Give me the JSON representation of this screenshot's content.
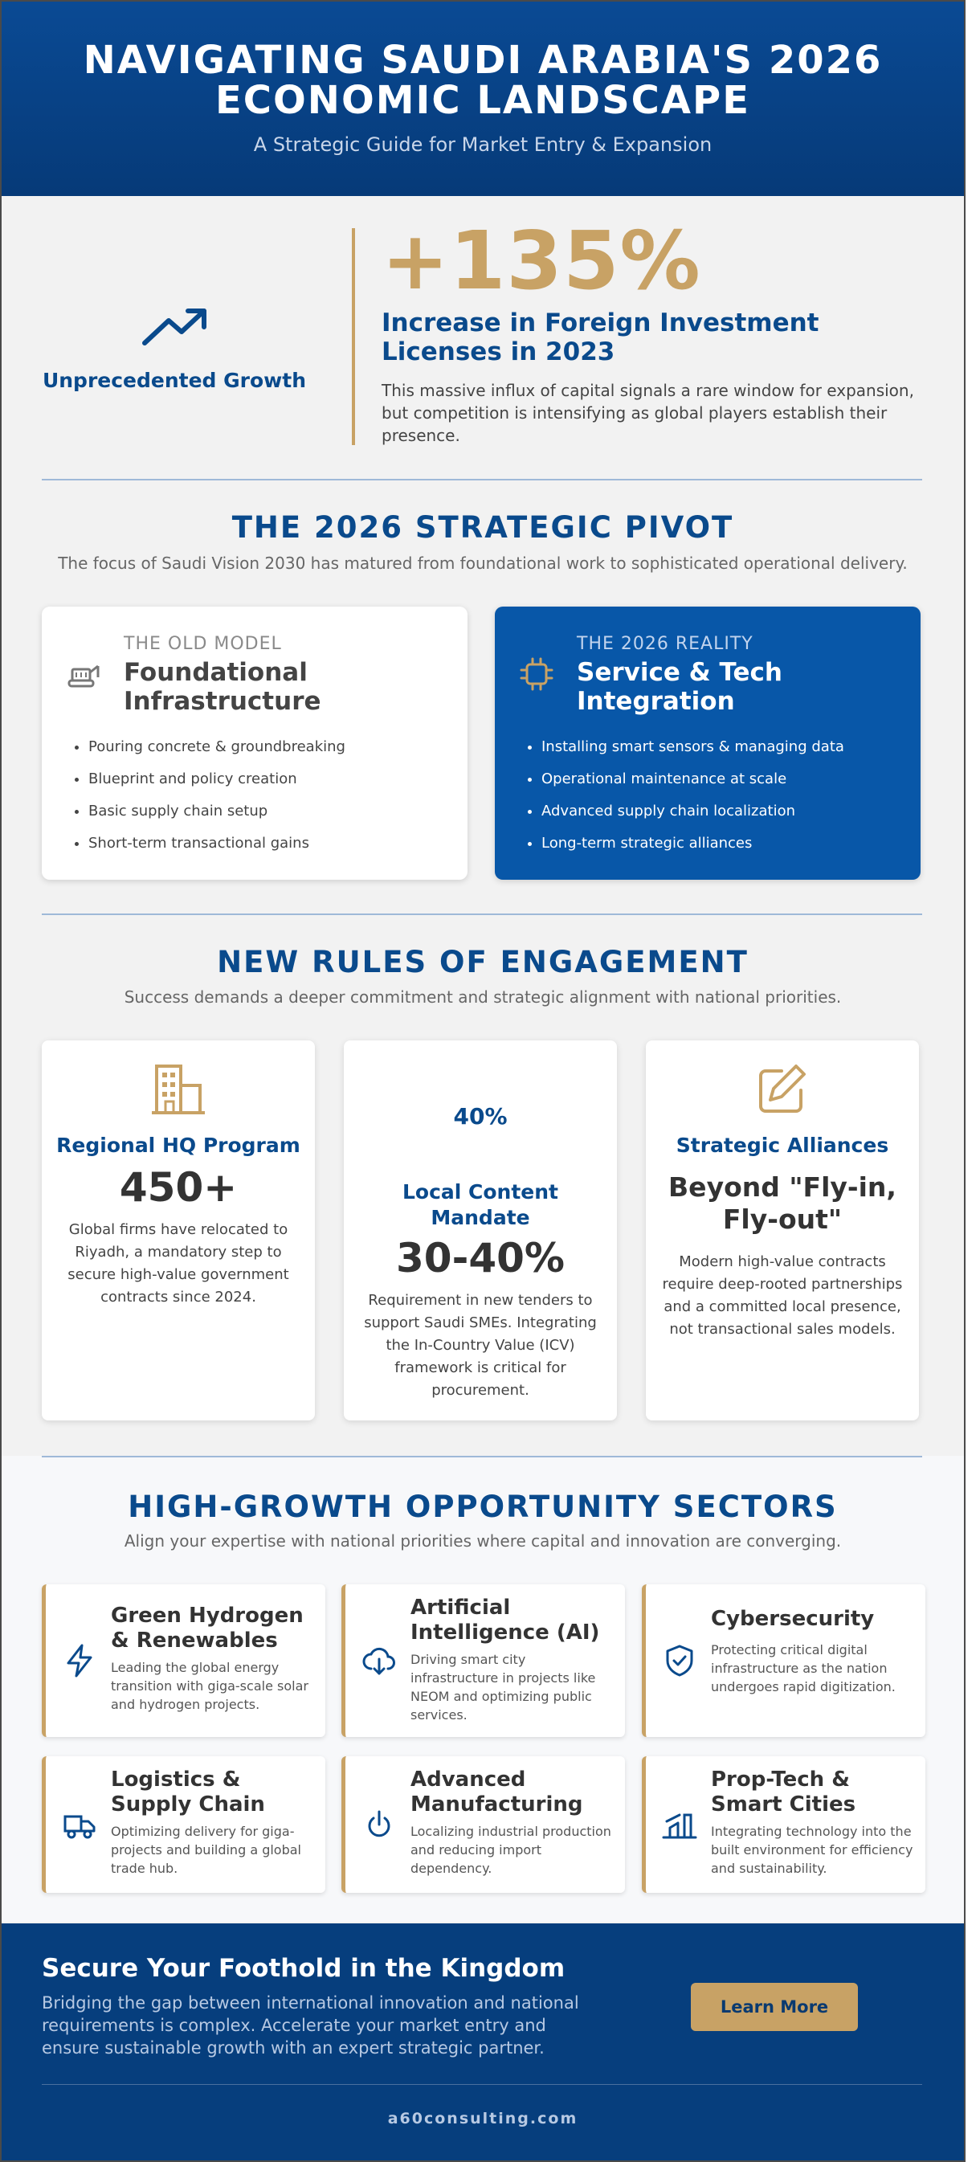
{
  "header": {
    "title_line1": "NAVIGATING SAUDI ARABIA'S 2026",
    "title_line2": "ECONOMIC LANDSCAPE",
    "subtitle": "A Strategic Guide for Market Entry & Expansion"
  },
  "growth": {
    "label": "Unprecedented Growth",
    "stat": "+135%",
    "headline": "Increase in Foreign Investment Licenses in 2023",
    "description": "This massive influx of capital signals a rare window for expansion, but competition is intensifying as global players establish their presence.",
    "icon": "trending-up-icon"
  },
  "pivot": {
    "title": "THE 2026 STRATEGIC PIVOT",
    "subtitle": "The focus of Saudi Vision 2030 has matured from foundational work to sophisticated operational delivery.",
    "old": {
      "kicker": "THE OLD MODEL",
      "title": "Foundational Infrastructure",
      "icon": "excavator-icon",
      "items": [
        "Pouring concrete & groundbreaking",
        "Blueprint and policy creation",
        "Basic supply chain setup",
        "Short-term transactional gains"
      ]
    },
    "new": {
      "kicker": "THE 2026 REALITY",
      "title": "Service & Tech Integration",
      "icon": "chip-icon",
      "items": [
        "Installing smart sensors & managing data",
        "Operational maintenance at scale",
        "Advanced supply chain localization",
        "Long-term strategic alliances"
      ]
    }
  },
  "rules": {
    "title": "NEW RULES OF ENGAGEMENT",
    "subtitle": "Success demands a deeper commitment and strategic alignment with national priorities.",
    "cards": [
      {
        "title": "Regional HQ Program",
        "stat": "450+",
        "description": "Global firms have relocated to Riyadh, a mandatory step to secure high-value government contracts since 2024.",
        "icon": "building-icon"
      },
      {
        "badge": "40%",
        "title": "Local Content Mandate",
        "stat": "30-40%",
        "description": "Requirement in new tenders to support Saudi SMEs. Integrating the In-Country Value (ICV) framework is critical for procurement."
      },
      {
        "title": "Strategic Alliances",
        "stat": "Beyond \"Fly-in, Fly-out\"",
        "description": "Modern high-value contracts require deep-rooted partnerships and a committed local presence, not transactional sales models.",
        "icon": "pencil-square-icon"
      }
    ]
  },
  "sectors": {
    "title": "HIGH-GROWTH OPPORTUNITY SECTORS",
    "subtitle": "Align your expertise with national priorities where capital and innovation are converging.",
    "items": [
      {
        "title": "Green Hydrogen & Renewables",
        "description": "Leading the global energy transition with giga-scale solar and hydrogen projects.",
        "icon": "lightning-icon"
      },
      {
        "title": "Artificial Intelligence (AI)",
        "description": "Driving smart city infrastructure in projects like NEOM and optimizing public services.",
        "icon": "cloud-download-icon"
      },
      {
        "title": "Cybersecurity",
        "description": "Protecting critical digital infrastructure as the nation undergoes rapid digitization.",
        "icon": "shield-check-icon"
      },
      {
        "title": "Logistics & Supply Chain",
        "description": "Optimizing delivery for giga-projects and building a global trade hub.",
        "icon": "truck-icon"
      },
      {
        "title": "Advanced Manufacturing",
        "description": "Localizing industrial production and reducing import dependency.",
        "icon": "power-icon"
      },
      {
        "title": "Prop-Tech & Smart Cities",
        "description": "Integrating technology into the built environment for efficiency and sustainability.",
        "icon": "city-icon"
      }
    ]
  },
  "footer": {
    "heading": "Secure Your Foothold in the Kingdom",
    "description": "Bridging the gap between international innovation and national requirements is complex. Accelerate your market entry and ensure sustainable growth with an expert strategic partner.",
    "button": "Learn More",
    "website": "a60consulting.com"
  },
  "colors": {
    "navy": "#0a4a8c",
    "gold": "#c8a265",
    "blue": "#0857a8",
    "background": "#f2f2f2"
  }
}
